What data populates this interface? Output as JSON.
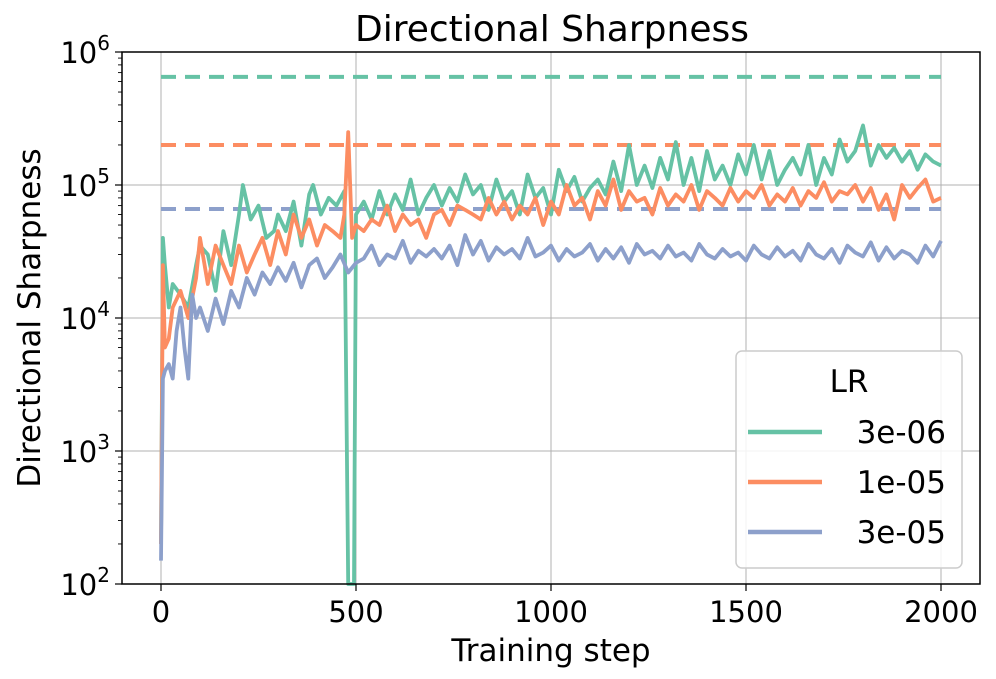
{
  "chart_data": {
    "type": "line",
    "title": "Directional Sharpness",
    "xlabel": "Training step",
    "ylabel": "Directional Sharpness",
    "xlim": [
      -100,
      2100
    ],
    "ylim": [
      100,
      1000000
    ],
    "yscale": "log",
    "grid": true,
    "x_ticks": [
      {
        "value": 0,
        "label": "0"
      },
      {
        "value": 500,
        "label": "500"
      },
      {
        "value": 1000,
        "label": "1000"
      },
      {
        "value": 1500,
        "label": "1500"
      },
      {
        "value": 2000,
        "label": "2000"
      }
    ],
    "y_ticks": [
      {
        "value": 100,
        "base": "10",
        "exp": "2"
      },
      {
        "value": 1000,
        "base": "10",
        "exp": "3"
      },
      {
        "value": 10000,
        "base": "10",
        "exp": "4"
      },
      {
        "value": 100000,
        "base": "10",
        "exp": "5"
      },
      {
        "value": 1000000,
        "base": "10",
        "exp": "6"
      }
    ],
    "legend": {
      "title": "LR",
      "placement": "lower-right"
    },
    "series": [
      {
        "name": "3e-06",
        "color": "#66c2a5",
        "threshold": 650000,
        "x": [
          0,
          5,
          10,
          20,
          30,
          50,
          70,
          90,
          100,
          120,
          140,
          160,
          180,
          200,
          210,
          230,
          250,
          270,
          290,
          300,
          320,
          340,
          360,
          380,
          390,
          410,
          430,
          450,
          470,
          480,
          485,
          490,
          495,
          500,
          520,
          540,
          560,
          580,
          600,
          620,
          640,
          660,
          680,
          700,
          720,
          740,
          760,
          780,
          800,
          820,
          840,
          860,
          880,
          900,
          920,
          940,
          960,
          980,
          1000,
          1020,
          1040,
          1060,
          1080,
          1100,
          1120,
          1140,
          1160,
          1180,
          1200,
          1220,
          1240,
          1260,
          1280,
          1300,
          1320,
          1340,
          1360,
          1380,
          1400,
          1420,
          1440,
          1460,
          1480,
          1500,
          1520,
          1540,
          1560,
          1580,
          1600,
          1620,
          1640,
          1660,
          1680,
          1700,
          1720,
          1740,
          1760,
          1780,
          1800,
          1820,
          1840,
          1860,
          1880,
          1900,
          1920,
          1940,
          1960,
          1980,
          2000
        ],
        "values": [
          200,
          40000,
          25000,
          12000,
          18000,
          15000,
          12000,
          25000,
          35000,
          30000,
          16000,
          45000,
          25000,
          60000,
          100000,
          55000,
          70000,
          40000,
          45000,
          60000,
          45000,
          75000,
          35000,
          85000,
          100000,
          60000,
          80000,
          70000,
          90000,
          100,
          100,
          100,
          100,
          60000,
          75000,
          55000,
          90000,
          60000,
          85000,
          65000,
          110000,
          60000,
          80000,
          100000,
          70000,
          95000,
          75000,
          120000,
          85000,
          100000,
          65000,
          110000,
          75000,
          90000,
          60000,
          120000,
          80000,
          95000,
          60000,
          130000,
          90000,
          115000,
          75000,
          95000,
          110000,
          85000,
          150000,
          90000,
          200000,
          100000,
          140000,
          95000,
          160000,
          110000,
          210000,
          100000,
          160000,
          90000,
          180000,
          110000,
          140000,
          100000,
          170000,
          120000,
          200000,
          110000,
          180000,
          100000,
          130000,
          160000,
          120000,
          200000,
          100000,
          160000,
          120000,
          220000,
          150000,
          180000,
          280000,
          140000,
          200000,
          160000,
          190000,
          150000,
          180000,
          130000,
          170000,
          150000,
          140000
        ]
      },
      {
        "name": "1e-05",
        "color": "#fc8d62",
        "threshold": 200000,
        "x": [
          0,
          5,
          10,
          20,
          30,
          50,
          70,
          90,
          100,
          120,
          140,
          160,
          180,
          200,
          220,
          240,
          260,
          280,
          300,
          320,
          340,
          360,
          380,
          400,
          420,
          440,
          460,
          470,
          480,
          490,
          500,
          520,
          540,
          560,
          580,
          600,
          620,
          640,
          660,
          680,
          700,
          720,
          740,
          760,
          780,
          800,
          820,
          840,
          860,
          880,
          900,
          920,
          940,
          960,
          980,
          1000,
          1020,
          1040,
          1060,
          1080,
          1100,
          1120,
          1140,
          1160,
          1180,
          1200,
          1220,
          1240,
          1260,
          1280,
          1300,
          1320,
          1340,
          1360,
          1380,
          1400,
          1420,
          1440,
          1460,
          1480,
          1500,
          1520,
          1540,
          1560,
          1580,
          1600,
          1620,
          1640,
          1660,
          1680,
          1700,
          1720,
          1740,
          1760,
          1780,
          1800,
          1820,
          1840,
          1860,
          1880,
          1900,
          1920,
          1940,
          1960,
          1980,
          2000
        ],
        "values": [
          200,
          25000,
          6000,
          7000,
          12000,
          16000,
          10000,
          20000,
          40000,
          18000,
          35000,
          25000,
          18000,
          35000,
          22000,
          30000,
          40000,
          25000,
          45000,
          30000,
          60000,
          40000,
          55000,
          35000,
          50000,
          45000,
          40000,
          60000,
          250000,
          40000,
          50000,
          45000,
          55000,
          50000,
          70000,
          45000,
          60000,
          50000,
          55000,
          40000,
          60000,
          65000,
          50000,
          70000,
          65000,
          60000,
          55000,
          80000,
          60000,
          75000,
          55000,
          70000,
          60000,
          80000,
          50000,
          75000,
          60000,
          100000,
          70000,
          80000,
          55000,
          90000,
          70000,
          110000,
          65000,
          90000,
          75000,
          80000,
          60000,
          95000,
          70000,
          85000,
          75000,
          100000,
          65000,
          90000,
          80000,
          70000,
          95000,
          75000,
          90000,
          80000,
          100000,
          70000,
          85000,
          75000,
          95000,
          70000,
          90000,
          80000,
          105000,
          75000,
          90000,
          85000,
          100000,
          75000,
          95000,
          65000,
          85000,
          55000,
          100000,
          80000,
          95000,
          110000,
          75000,
          80000
        ]
      },
      {
        "name": "3e-05",
        "color": "#8da0cb",
        "threshold": 66000,
        "x": [
          0,
          5,
          10,
          20,
          30,
          40,
          50,
          60,
          70,
          80,
          90,
          100,
          120,
          140,
          160,
          180,
          200,
          220,
          240,
          260,
          280,
          300,
          320,
          340,
          360,
          380,
          400,
          420,
          440,
          460,
          480,
          500,
          520,
          540,
          560,
          580,
          600,
          620,
          640,
          660,
          680,
          700,
          720,
          740,
          760,
          780,
          800,
          820,
          840,
          860,
          880,
          900,
          920,
          940,
          960,
          980,
          1000,
          1020,
          1040,
          1060,
          1080,
          1100,
          1120,
          1140,
          1160,
          1180,
          1200,
          1220,
          1240,
          1260,
          1280,
          1300,
          1320,
          1340,
          1360,
          1380,
          1400,
          1420,
          1440,
          1460,
          1480,
          1500,
          1520,
          1540,
          1560,
          1580,
          1600,
          1620,
          1640,
          1660,
          1680,
          1700,
          1720,
          1740,
          1760,
          1780,
          1800,
          1820,
          1840,
          1860,
          1880,
          1900,
          1920,
          1940,
          1960,
          1980,
          2000
        ],
        "values": [
          150,
          3500,
          4000,
          4500,
          3500,
          8000,
          12000,
          6000,
          3500,
          15000,
          10000,
          12000,
          8000,
          14000,
          9000,
          16000,
          12000,
          20000,
          15000,
          22000,
          18000,
          24000,
          19000,
          26000,
          17000,
          25000,
          28000,
          20000,
          24000,
          30000,
          22000,
          26000,
          28000,
          35000,
          25000,
          30000,
          28000,
          38000,
          26000,
          32000,
          29000,
          33000,
          28000,
          35000,
          25000,
          42000,
          30000,
          38000,
          27000,
          34000,
          30000,
          33000,
          28000,
          40000,
          29000,
          31000,
          35000,
          27000,
          33000,
          29000,
          31000,
          36000,
          27000,
          33000,
          28000,
          34000,
          26000,
          36000,
          30000,
          32000,
          28000,
          35000,
          29000,
          31000,
          27000,
          36000,
          30000,
          28000,
          33000,
          29000,
          31000,
          27000,
          35000,
          30000,
          28000,
          34000,
          29000,
          32000,
          27000,
          36000,
          30000,
          28000,
          33000,
          26000,
          35000,
          31000,
          29000,
          37000,
          27000,
          34000,
          28000,
          32000,
          30000,
          26000,
          35000,
          29000,
          38000
        ]
      }
    ]
  }
}
